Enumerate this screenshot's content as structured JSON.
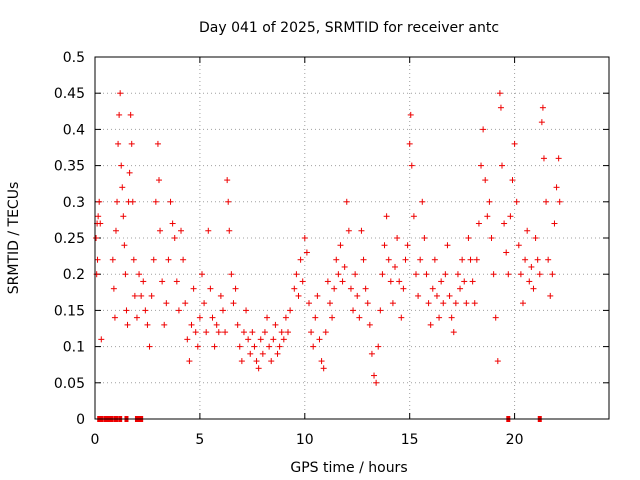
{
  "chart_data": {
    "type": "scatter",
    "title": "Day 041 of 2025, SRMTID for receiver antc",
    "xlabel": "GPS time / hours",
    "ylabel": "SRMTID / TECUs",
    "xlim": [
      0,
      24.5
    ],
    "ylim": [
      0,
      0.5
    ],
    "xticks": [
      0,
      5,
      10,
      15,
      20
    ],
    "xtick_labels": [
      "0",
      "5",
      "10",
      "15",
      "20"
    ],
    "yticks": [
      0,
      0.05,
      0.1,
      0.15,
      0.2,
      0.25,
      0.3,
      0.35,
      0.4,
      0.45,
      0.5
    ],
    "ytick_labels": [
      "0",
      "0.05",
      "0.1",
      "0.15",
      "0.2",
      "0.25",
      "0.3",
      "0.35",
      "0.4",
      "0.45",
      "0.5"
    ],
    "grid": true,
    "marker": "plus",
    "color": "#ee0000",
    "series": [
      {
        "name": "SRMTID",
        "points": [
          [
            0.05,
            0.25
          ],
          [
            0.08,
            0.2
          ],
          [
            0.1,
            0.27
          ],
          [
            0.12,
            0.22
          ],
          [
            0.15,
            0.28
          ],
          [
            0.2,
            0.3
          ],
          [
            0.25,
            0.27
          ],
          [
            0.3,
            0.11
          ],
          [
            0.85,
            0.22
          ],
          [
            0.9,
            0.18
          ],
          [
            0.95,
            0.14
          ],
          [
            1.0,
            0.26
          ],
          [
            1.05,
            0.3
          ],
          [
            1.1,
            0.38
          ],
          [
            1.15,
            0.42
          ],
          [
            1.2,
            0.45
          ],
          [
            1.25,
            0.35
          ],
          [
            1.3,
            0.32
          ],
          [
            1.35,
            0.28
          ],
          [
            1.4,
            0.24
          ],
          [
            1.45,
            0.2
          ],
          [
            1.5,
            0.15
          ],
          [
            1.55,
            0.13
          ],
          [
            1.6,
            0.3
          ],
          [
            1.65,
            0.34
          ],
          [
            1.7,
            0.42
          ],
          [
            1.75,
            0.38
          ],
          [
            1.8,
            0.3
          ],
          [
            1.85,
            0.22
          ],
          [
            1.9,
            0.17
          ],
          [
            2.0,
            0.14
          ],
          [
            2.1,
            0.2
          ],
          [
            2.2,
            0.17
          ],
          [
            2.3,
            0.19
          ],
          [
            2.4,
            0.15
          ],
          [
            2.5,
            0.13
          ],
          [
            2.6,
            0.1
          ],
          [
            2.7,
            0.17
          ],
          [
            2.8,
            0.22
          ],
          [
            2.9,
            0.3
          ],
          [
            3.0,
            0.38
          ],
          [
            3.05,
            0.33
          ],
          [
            3.1,
            0.26
          ],
          [
            3.2,
            0.19
          ],
          [
            3.3,
            0.13
          ],
          [
            3.4,
            0.16
          ],
          [
            3.5,
            0.22
          ],
          [
            3.6,
            0.3
          ],
          [
            3.7,
            0.27
          ],
          [
            3.8,
            0.25
          ],
          [
            3.9,
            0.19
          ],
          [
            4.0,
            0.15
          ],
          [
            4.1,
            0.26
          ],
          [
            4.2,
            0.22
          ],
          [
            4.3,
            0.16
          ],
          [
            4.4,
            0.11
          ],
          [
            4.5,
            0.08
          ],
          [
            4.6,
            0.13
          ],
          [
            4.7,
            0.18
          ],
          [
            4.8,
            0.12
          ],
          [
            4.9,
            0.1
          ],
          [
            5.0,
            0.14
          ],
          [
            5.1,
            0.2
          ],
          [
            5.2,
            0.16
          ],
          [
            5.3,
            0.12
          ],
          [
            5.4,
            0.26
          ],
          [
            5.5,
            0.18
          ],
          [
            5.6,
            0.14
          ],
          [
            5.7,
            0.1
          ],
          [
            5.8,
            0.13
          ],
          [
            5.9,
            0.12
          ],
          [
            6.0,
            0.17
          ],
          [
            6.1,
            0.15
          ],
          [
            6.2,
            0.12
          ],
          [
            6.3,
            0.33
          ],
          [
            6.35,
            0.3
          ],
          [
            6.4,
            0.26
          ],
          [
            6.5,
            0.2
          ],
          [
            6.6,
            0.16
          ],
          [
            6.7,
            0.18
          ],
          [
            6.8,
            0.13
          ],
          [
            6.9,
            0.1
          ],
          [
            7.0,
            0.08
          ],
          [
            7.1,
            0.12
          ],
          [
            7.2,
            0.15
          ],
          [
            7.3,
            0.11
          ],
          [
            7.4,
            0.09
          ],
          [
            7.5,
            0.12
          ],
          [
            7.6,
            0.1
          ],
          [
            7.7,
            0.08
          ],
          [
            7.8,
            0.07
          ],
          [
            7.9,
            0.11
          ],
          [
            8.0,
            0.09
          ],
          [
            8.1,
            0.12
          ],
          [
            8.2,
            0.14
          ],
          [
            8.3,
            0.1
          ],
          [
            8.4,
            0.08
          ],
          [
            8.5,
            0.11
          ],
          [
            8.6,
            0.13
          ],
          [
            8.7,
            0.09
          ],
          [
            8.8,
            0.1
          ],
          [
            8.9,
            0.12
          ],
          [
            9.0,
            0.11
          ],
          [
            9.1,
            0.14
          ],
          [
            9.2,
            0.12
          ],
          [
            9.3,
            0.15
          ],
          [
            9.5,
            0.18
          ],
          [
            9.6,
            0.2
          ],
          [
            9.7,
            0.17
          ],
          [
            9.8,
            0.22
          ],
          [
            9.9,
            0.19
          ],
          [
            10.0,
            0.25
          ],
          [
            10.1,
            0.23
          ],
          [
            10.2,
            0.16
          ],
          [
            10.3,
            0.12
          ],
          [
            10.4,
            0.1
          ],
          [
            10.5,
            0.14
          ],
          [
            10.6,
            0.17
          ],
          [
            10.7,
            0.11
          ],
          [
            10.8,
            0.08
          ],
          [
            10.9,
            0.07
          ],
          [
            11.0,
            0.12
          ],
          [
            11.1,
            0.19
          ],
          [
            11.2,
            0.16
          ],
          [
            11.3,
            0.14
          ],
          [
            11.4,
            0.18
          ],
          [
            11.5,
            0.22
          ],
          [
            11.6,
            0.2
          ],
          [
            11.7,
            0.24
          ],
          [
            11.8,
            0.19
          ],
          [
            11.9,
            0.21
          ],
          [
            12.0,
            0.3
          ],
          [
            12.1,
            0.26
          ],
          [
            12.2,
            0.18
          ],
          [
            12.3,
            0.15
          ],
          [
            12.4,
            0.2
          ],
          [
            12.5,
            0.17
          ],
          [
            12.6,
            0.14
          ],
          [
            12.7,
            0.26
          ],
          [
            12.8,
            0.22
          ],
          [
            12.9,
            0.18
          ],
          [
            13.0,
            0.16
          ],
          [
            13.1,
            0.13
          ],
          [
            13.2,
            0.09
          ],
          [
            13.3,
            0.06
          ],
          [
            13.4,
            0.05
          ],
          [
            13.5,
            0.1
          ],
          [
            13.6,
            0.15
          ],
          [
            13.7,
            0.2
          ],
          [
            13.8,
            0.24
          ],
          [
            13.9,
            0.28
          ],
          [
            14.0,
            0.22
          ],
          [
            14.1,
            0.19
          ],
          [
            14.2,
            0.16
          ],
          [
            14.3,
            0.21
          ],
          [
            14.4,
            0.25
          ],
          [
            14.5,
            0.19
          ],
          [
            14.6,
            0.14
          ],
          [
            14.7,
            0.18
          ],
          [
            14.8,
            0.22
          ],
          [
            14.9,
            0.24
          ],
          [
            15.0,
            0.38
          ],
          [
            15.05,
            0.42
          ],
          [
            15.1,
            0.35
          ],
          [
            15.2,
            0.28
          ],
          [
            15.3,
            0.2
          ],
          [
            15.4,
            0.17
          ],
          [
            15.5,
            0.22
          ],
          [
            15.6,
            0.3
          ],
          [
            15.7,
            0.25
          ],
          [
            15.8,
            0.2
          ],
          [
            15.9,
            0.16
          ],
          [
            16.0,
            0.13
          ],
          [
            16.1,
            0.18
          ],
          [
            16.2,
            0.22
          ],
          [
            16.3,
            0.17
          ],
          [
            16.4,
            0.14
          ],
          [
            16.5,
            0.19
          ],
          [
            16.6,
            0.16
          ],
          [
            16.7,
            0.2
          ],
          [
            16.8,
            0.24
          ],
          [
            16.9,
            0.17
          ],
          [
            17.0,
            0.14
          ],
          [
            17.1,
            0.12
          ],
          [
            17.2,
            0.16
          ],
          [
            17.3,
            0.2
          ],
          [
            17.4,
            0.18
          ],
          [
            17.5,
            0.22
          ],
          [
            17.6,
            0.19
          ],
          [
            17.7,
            0.16
          ],
          [
            17.8,
            0.25
          ],
          [
            17.9,
            0.22
          ],
          [
            18.0,
            0.19
          ],
          [
            18.1,
            0.16
          ],
          [
            18.2,
            0.22
          ],
          [
            18.3,
            0.27
          ],
          [
            18.4,
            0.35
          ],
          [
            18.5,
            0.4
          ],
          [
            18.6,
            0.33
          ],
          [
            18.7,
            0.28
          ],
          [
            18.8,
            0.3
          ],
          [
            18.9,
            0.25
          ],
          [
            19.0,
            0.2
          ],
          [
            19.1,
            0.14
          ],
          [
            19.2,
            0.08
          ],
          [
            19.3,
            0.45
          ],
          [
            19.35,
            0.43
          ],
          [
            19.4,
            0.35
          ],
          [
            19.5,
            0.27
          ],
          [
            19.6,
            0.23
          ],
          [
            19.7,
            0.2
          ],
          [
            19.8,
            0.28
          ],
          [
            19.9,
            0.33
          ],
          [
            20.0,
            0.38
          ],
          [
            20.1,
            0.3
          ],
          [
            20.2,
            0.24
          ],
          [
            20.3,
            0.2
          ],
          [
            20.4,
            0.16
          ],
          [
            20.5,
            0.22
          ],
          [
            20.6,
            0.26
          ],
          [
            20.7,
            0.19
          ],
          [
            20.8,
            0.21
          ],
          [
            20.9,
            0.18
          ],
          [
            21.0,
            0.25
          ],
          [
            21.1,
            0.22
          ],
          [
            21.2,
            0.2
          ],
          [
            21.3,
            0.41
          ],
          [
            21.35,
            0.43
          ],
          [
            21.4,
            0.36
          ],
          [
            21.5,
            0.3
          ],
          [
            21.6,
            0.22
          ],
          [
            21.7,
            0.17
          ],
          [
            21.8,
            0.2
          ],
          [
            21.9,
            0.27
          ],
          [
            22.0,
            0.32
          ],
          [
            22.1,
            0.36
          ],
          [
            22.15,
            0.3
          ]
        ]
      }
    ],
    "zero_markers": [
      0.2,
      0.3,
      0.5,
      0.6,
      0.7,
      0.8,
      1.0,
      1.2,
      1.5,
      2.0,
      2.1,
      2.2,
      19.7,
      21.2
    ]
  }
}
